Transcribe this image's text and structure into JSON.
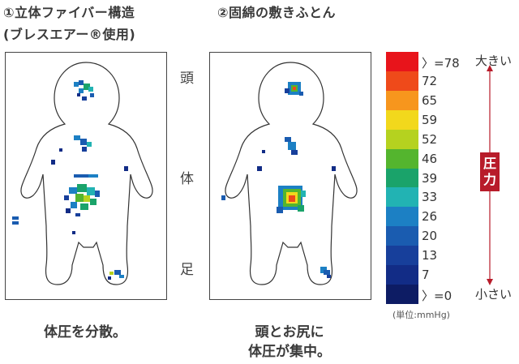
{
  "panels": [
    {
      "title_line1": "①立体ファイバー構造",
      "title_line2": "(ブレスエアー®使用)",
      "caption_line1": "体圧を分散。",
      "caption_line2": ""
    },
    {
      "title_line1": "②固綿の敷きふとん",
      "title_line2": "",
      "caption_line1": "頭とお尻に",
      "caption_line2": "体圧が集中。"
    }
  ],
  "body_labels": {
    "head": "頭",
    "body": "体",
    "foot": "足"
  },
  "scale": {
    "ticks": [
      "〉=78",
      "72",
      "65",
      "59",
      "52",
      "46",
      "39",
      "33",
      "26",
      "20",
      "13",
      "7",
      "〉=0"
    ],
    "colors": [
      "#e8141b",
      "#ef4a1a",
      "#f7961d",
      "#f2d81c",
      "#b5d21f",
      "#54b52e",
      "#1aa36a",
      "#22b3b3",
      "#1c80c4",
      "#1a5cb0",
      "#173f9b",
      "#122c86",
      "#0d1c64"
    ],
    "high_label": "大きい",
    "low_label": "小さい",
    "axis_label": "圧力",
    "unit": "(単位:mmHg)",
    "arrow_color": "#b81c2a"
  }
}
